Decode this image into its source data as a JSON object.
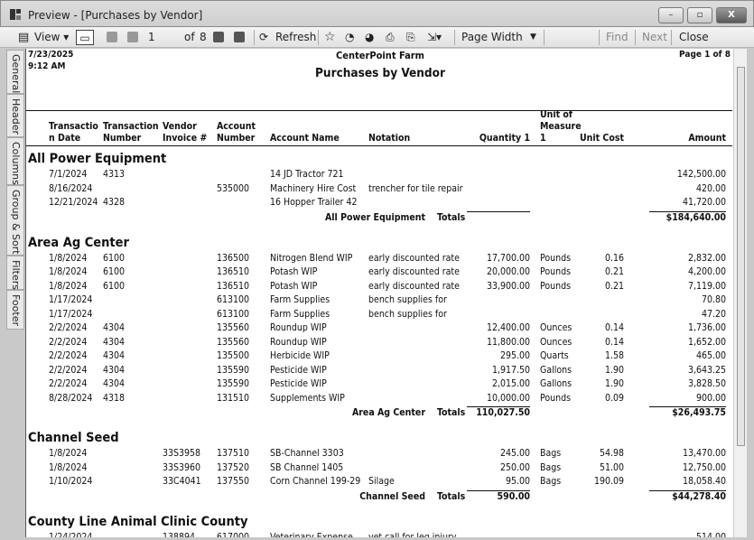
{
  "window": {
    "title": "Preview - [Purchases by Vendor]",
    "min": "–",
    "max": "▫",
    "close": "X"
  },
  "toolbar": {
    "view": "View ▾",
    "page": "1",
    "of": "of",
    "total": "8",
    "refresh": "Refresh",
    "zoom": "Page Width",
    "find": "Find",
    "next": "Next",
    "close": "Close"
  },
  "sidetabs": [
    "General",
    "Header",
    "Columns",
    "Group & Sort",
    "Filters",
    "Footer"
  ],
  "report": {
    "date": "7/23/2025",
    "time": "9:12 AM",
    "company": "CenterPoint Farm",
    "title": "Purchases by Vendor",
    "page": "Page 1 of 8",
    "columns": [
      [
        "Transactio",
        "n Date"
      ],
      [
        "Transaction",
        "Number"
      ],
      [
        "Vendor",
        "Invoice #"
      ],
      [
        "Account",
        "Number"
      ],
      [
        "",
        "Account Name"
      ],
      [
        "",
        "Notation"
      ],
      [
        "",
        "Quantity 1"
      ],
      [
        "Unit of",
        "Measure",
        "1"
      ],
      [
        "",
        "Unit Cost"
      ],
      [
        "",
        "Amount"
      ]
    ],
    "totals_label": "Totals",
    "groups": [
      {
        "name": "All Power Equipment",
        "rows": [
          [
            "7/1/2024",
            "4313",
            "",
            "",
            "14 JD Tractor 721",
            "",
            "",
            "",
            "",
            "142,500.00"
          ],
          [
            "8/16/2024",
            "",
            "",
            "535000",
            "Machinery Hire Cost",
            "trencher for tile repair",
            "",
            "",
            "",
            "420.00"
          ],
          [
            "12/21/2024",
            "4328",
            "",
            "",
            "16 Hopper Trailer 42",
            "",
            "",
            "",
            "",
            "41,720.00"
          ]
        ],
        "total_qty": "",
        "total_amount": "$184,640.00"
      },
      {
        "name": "Area Ag Center",
        "rows": [
          [
            "1/8/2024",
            "6100",
            "",
            "136500",
            "Nitrogen Blend WIP",
            "early discounted rate",
            "17,700.00",
            "Pounds",
            "0.16",
            "2,832.00"
          ],
          [
            "1/8/2024",
            "6100",
            "",
            "136510",
            "Potash WIP",
            "early discounted rate",
            "20,000.00",
            "Pounds",
            "0.21",
            "4,200.00"
          ],
          [
            "1/8/2024",
            "6100",
            "",
            "136510",
            "Potash WIP",
            "early discounted rate",
            "33,900.00",
            "Pounds",
            "0.21",
            "7,119.00"
          ],
          [
            "1/17/2024",
            "",
            "",
            "613100",
            "Farm Supplies",
            "bench supplies for",
            "",
            "",
            "",
            "70.80"
          ],
          [
            "1/17/2024",
            "",
            "",
            "613100",
            "Farm Supplies",
            "bench supplies for",
            "",
            "",
            "",
            "47.20"
          ],
          [
            "2/2/2024",
            "4304",
            "",
            "135560",
            "Roundup WIP",
            "",
            "12,400.00",
            "Ounces",
            "0.14",
            "1,736.00"
          ],
          [
            "2/2/2024",
            "4304",
            "",
            "135560",
            "Roundup WIP",
            "",
            "11,800.00",
            "Ounces",
            "0.14",
            "1,652.00"
          ],
          [
            "2/2/2024",
            "4304",
            "",
            "135500",
            "Herbicide WIP",
            "",
            "295.00",
            "Quarts",
            "1.58",
            "465.00"
          ],
          [
            "2/2/2024",
            "4304",
            "",
            "135590",
            "Pesticide WIP",
            "",
            "1,917.50",
            "Gallons",
            "1.90",
            "3,643.25"
          ],
          [
            "2/2/2024",
            "4304",
            "",
            "135590",
            "Pesticide WIP",
            "",
            "2,015.00",
            "Gallons",
            "1.90",
            "3,828.50"
          ],
          [
            "8/28/2024",
            "4318",
            "",
            "131510",
            "Supplements WIP",
            "",
            "10,000.00",
            "Pounds",
            "0.09",
            "900.00"
          ]
        ],
        "total_qty": "110,027.50",
        "total_amount": "$26,493.75"
      },
      {
        "name": "Channel Seed",
        "rows": [
          [
            "1/8/2024",
            "",
            "33S3958",
            "137510",
            "SB-Channel 3303",
            "",
            "245.00",
            "Bags",
            "54.98",
            "13,470.00"
          ],
          [
            "1/8/2024",
            "",
            "33S3960",
            "137520",
            "SB Channel 1405",
            "",
            "250.00",
            "Bags",
            "51.00",
            "12,750.00"
          ],
          [
            "1/10/2024",
            "",
            "33C4041",
            "137550",
            "Corn Channel 199-29",
            "Silage",
            "95.00",
            "Bags",
            "190.09",
            "18,058.40"
          ]
        ],
        "total_qty": "590.00",
        "total_amount": "$44,278.40"
      },
      {
        "name": "County Line Animal Clinic   County",
        "rows": [
          [
            "1/24/2024",
            "",
            "138894",
            "617000",
            "Veterinary Expense",
            "vet call for leg injury",
            "",
            "",
            "",
            "514.00"
          ]
        ]
      }
    ]
  }
}
